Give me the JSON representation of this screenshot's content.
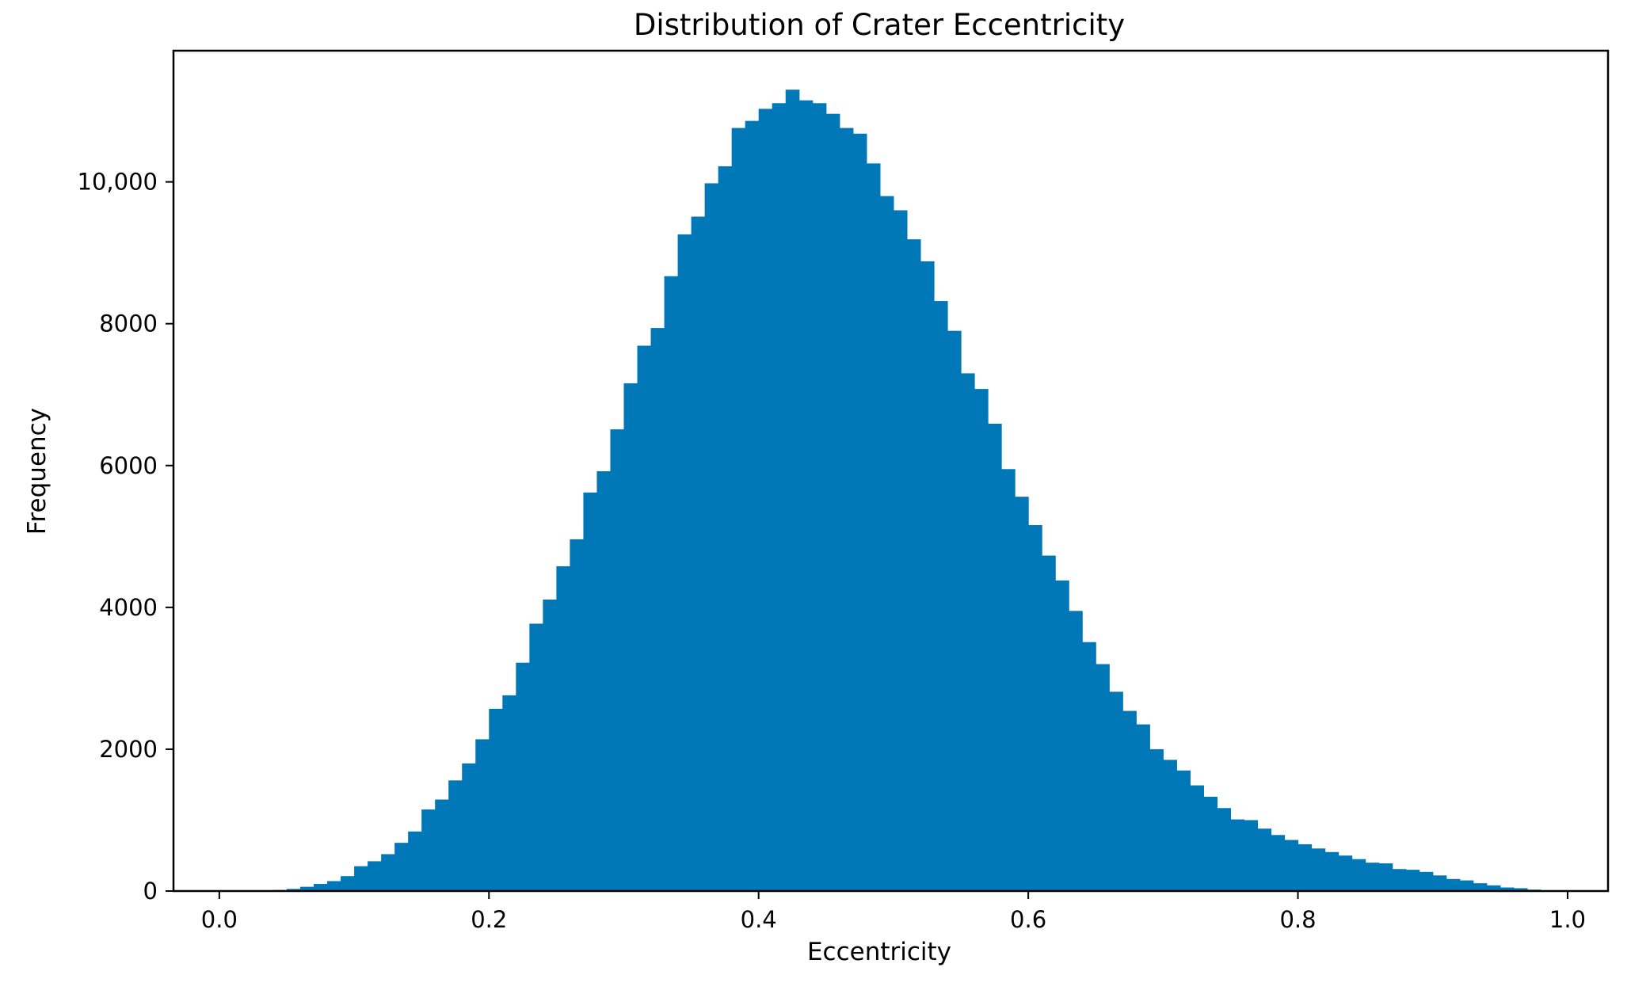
{
  "chart_data": {
    "type": "bar",
    "title": "Distribution of Crater Eccentricity",
    "xlabel": "Eccentricity",
    "ylabel": "Frequency",
    "xlim": [
      -0.034,
      1.03
    ],
    "ylim": [
      0,
      11850
    ],
    "xticks": [
      {
        "value": 0.0,
        "label": "0.0"
      },
      {
        "value": 0.2,
        "label": "0.2"
      },
      {
        "value": 0.4,
        "label": "0.4"
      },
      {
        "value": 0.6,
        "label": "0.6"
      },
      {
        "value": 0.8,
        "label": "0.8"
      },
      {
        "value": 1.0,
        "label": "1.0"
      }
    ],
    "yticks": [
      {
        "value": 0,
        "label": "0"
      },
      {
        "value": 2000,
        "label": "2000"
      },
      {
        "value": 4000,
        "label": "4000"
      },
      {
        "value": 6000,
        "label": "6000"
      },
      {
        "value": 8000,
        "label": "8000"
      },
      {
        "value": 10000,
        "label": "10,000"
      }
    ],
    "grid": false,
    "color": "#0077b6",
    "bin_width": 0.01,
    "bin_start": 0.0,
    "values": [
      0,
      0,
      0,
      5,
      15,
      30,
      60,
      100,
      140,
      210,
      350,
      420,
      520,
      680,
      840,
      1150,
      1290,
      1560,
      1800,
      2140,
      2570,
      2760,
      3220,
      3770,
      4110,
      4580,
      4960,
      5620,
      5920,
      6510,
      7160,
      7690,
      7940,
      8670,
      9260,
      9510,
      9980,
      10220,
      10760,
      10860,
      11030,
      11110,
      11300,
      11150,
      11110,
      10960,
      10760,
      10680,
      10260,
      9800,
      9600,
      9190,
      8880,
      8320,
      7900,
      7300,
      7080,
      6590,
      5950,
      5560,
      5160,
      4730,
      4380,
      3950,
      3510,
      3200,
      2810,
      2540,
      2350,
      2000,
      1850,
      1700,
      1490,
      1330,
      1170,
      1010,
      1000,
      880,
      790,
      720,
      660,
      600,
      550,
      500,
      450,
      400,
      390,
      310,
      300,
      270,
      220,
      170,
      150,
      110,
      80,
      50,
      40,
      20,
      10,
      0
    ]
  }
}
